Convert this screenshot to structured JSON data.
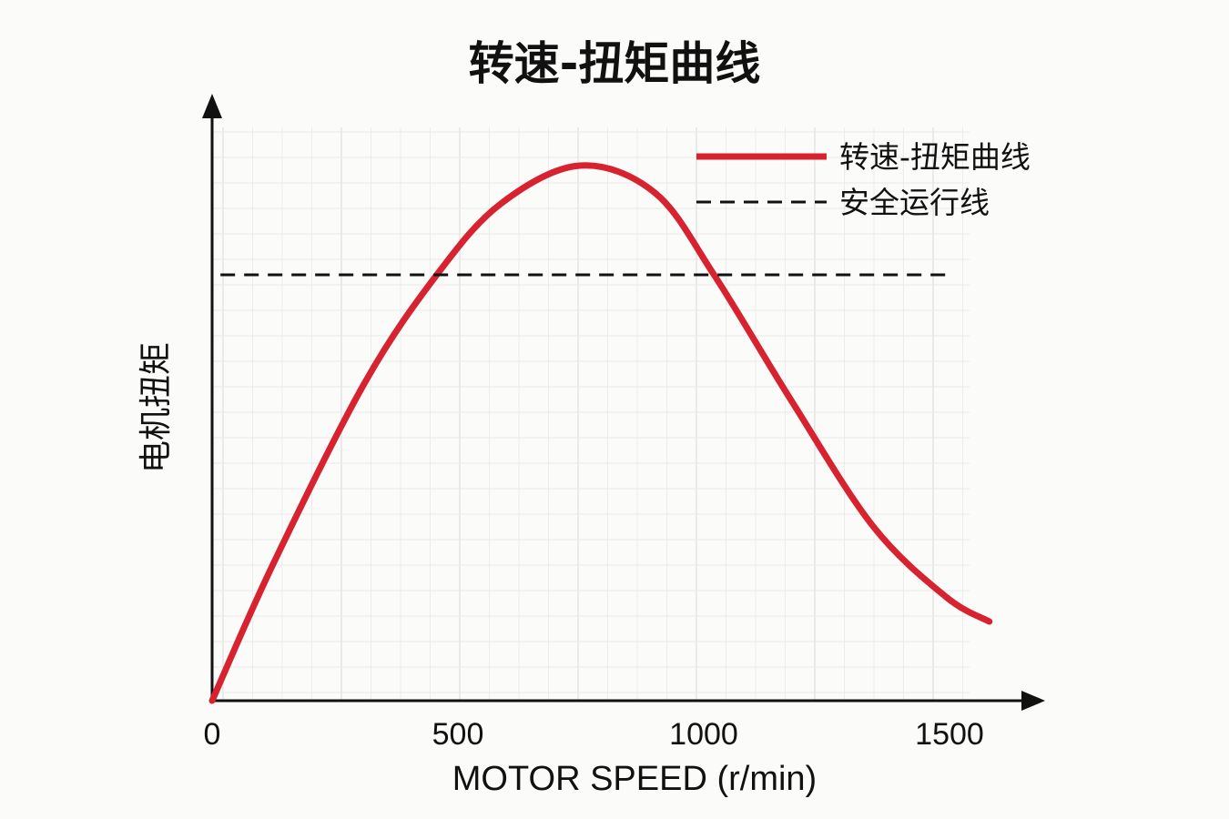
{
  "chart_data": {
    "type": "line",
    "title": "转速-扭矩曲线",
    "xlabel": "MOTOR SPEED (r/min)",
    "ylabel": "电机扭矩",
    "xlim": [
      0,
      1650
    ],
    "ylim": [
      0,
      110
    ],
    "xticks": [
      0,
      500,
      1000,
      1500
    ],
    "xtick_labels": [
      "0",
      "500",
      "1000",
      "1500"
    ],
    "grid": true,
    "legend_position": "top-right",
    "series": [
      {
        "name": "转速-扭矩曲线",
        "color": "#d6232f",
        "style": "solid",
        "x": [
          0,
          124,
          309,
          457,
          587,
          748,
          901,
          1021,
          1178,
          1344,
          1493,
          1581
        ],
        "y": [
          0,
          25,
          58,
          78,
          91,
          98,
          93,
          78,
          55,
          32,
          19,
          14.5
        ]
      },
      {
        "name": "安全运行线",
        "color": "#111111",
        "style": "dashed",
        "x": [
          17,
          1494
        ],
        "y": [
          78,
          78
        ]
      }
    ]
  }
}
